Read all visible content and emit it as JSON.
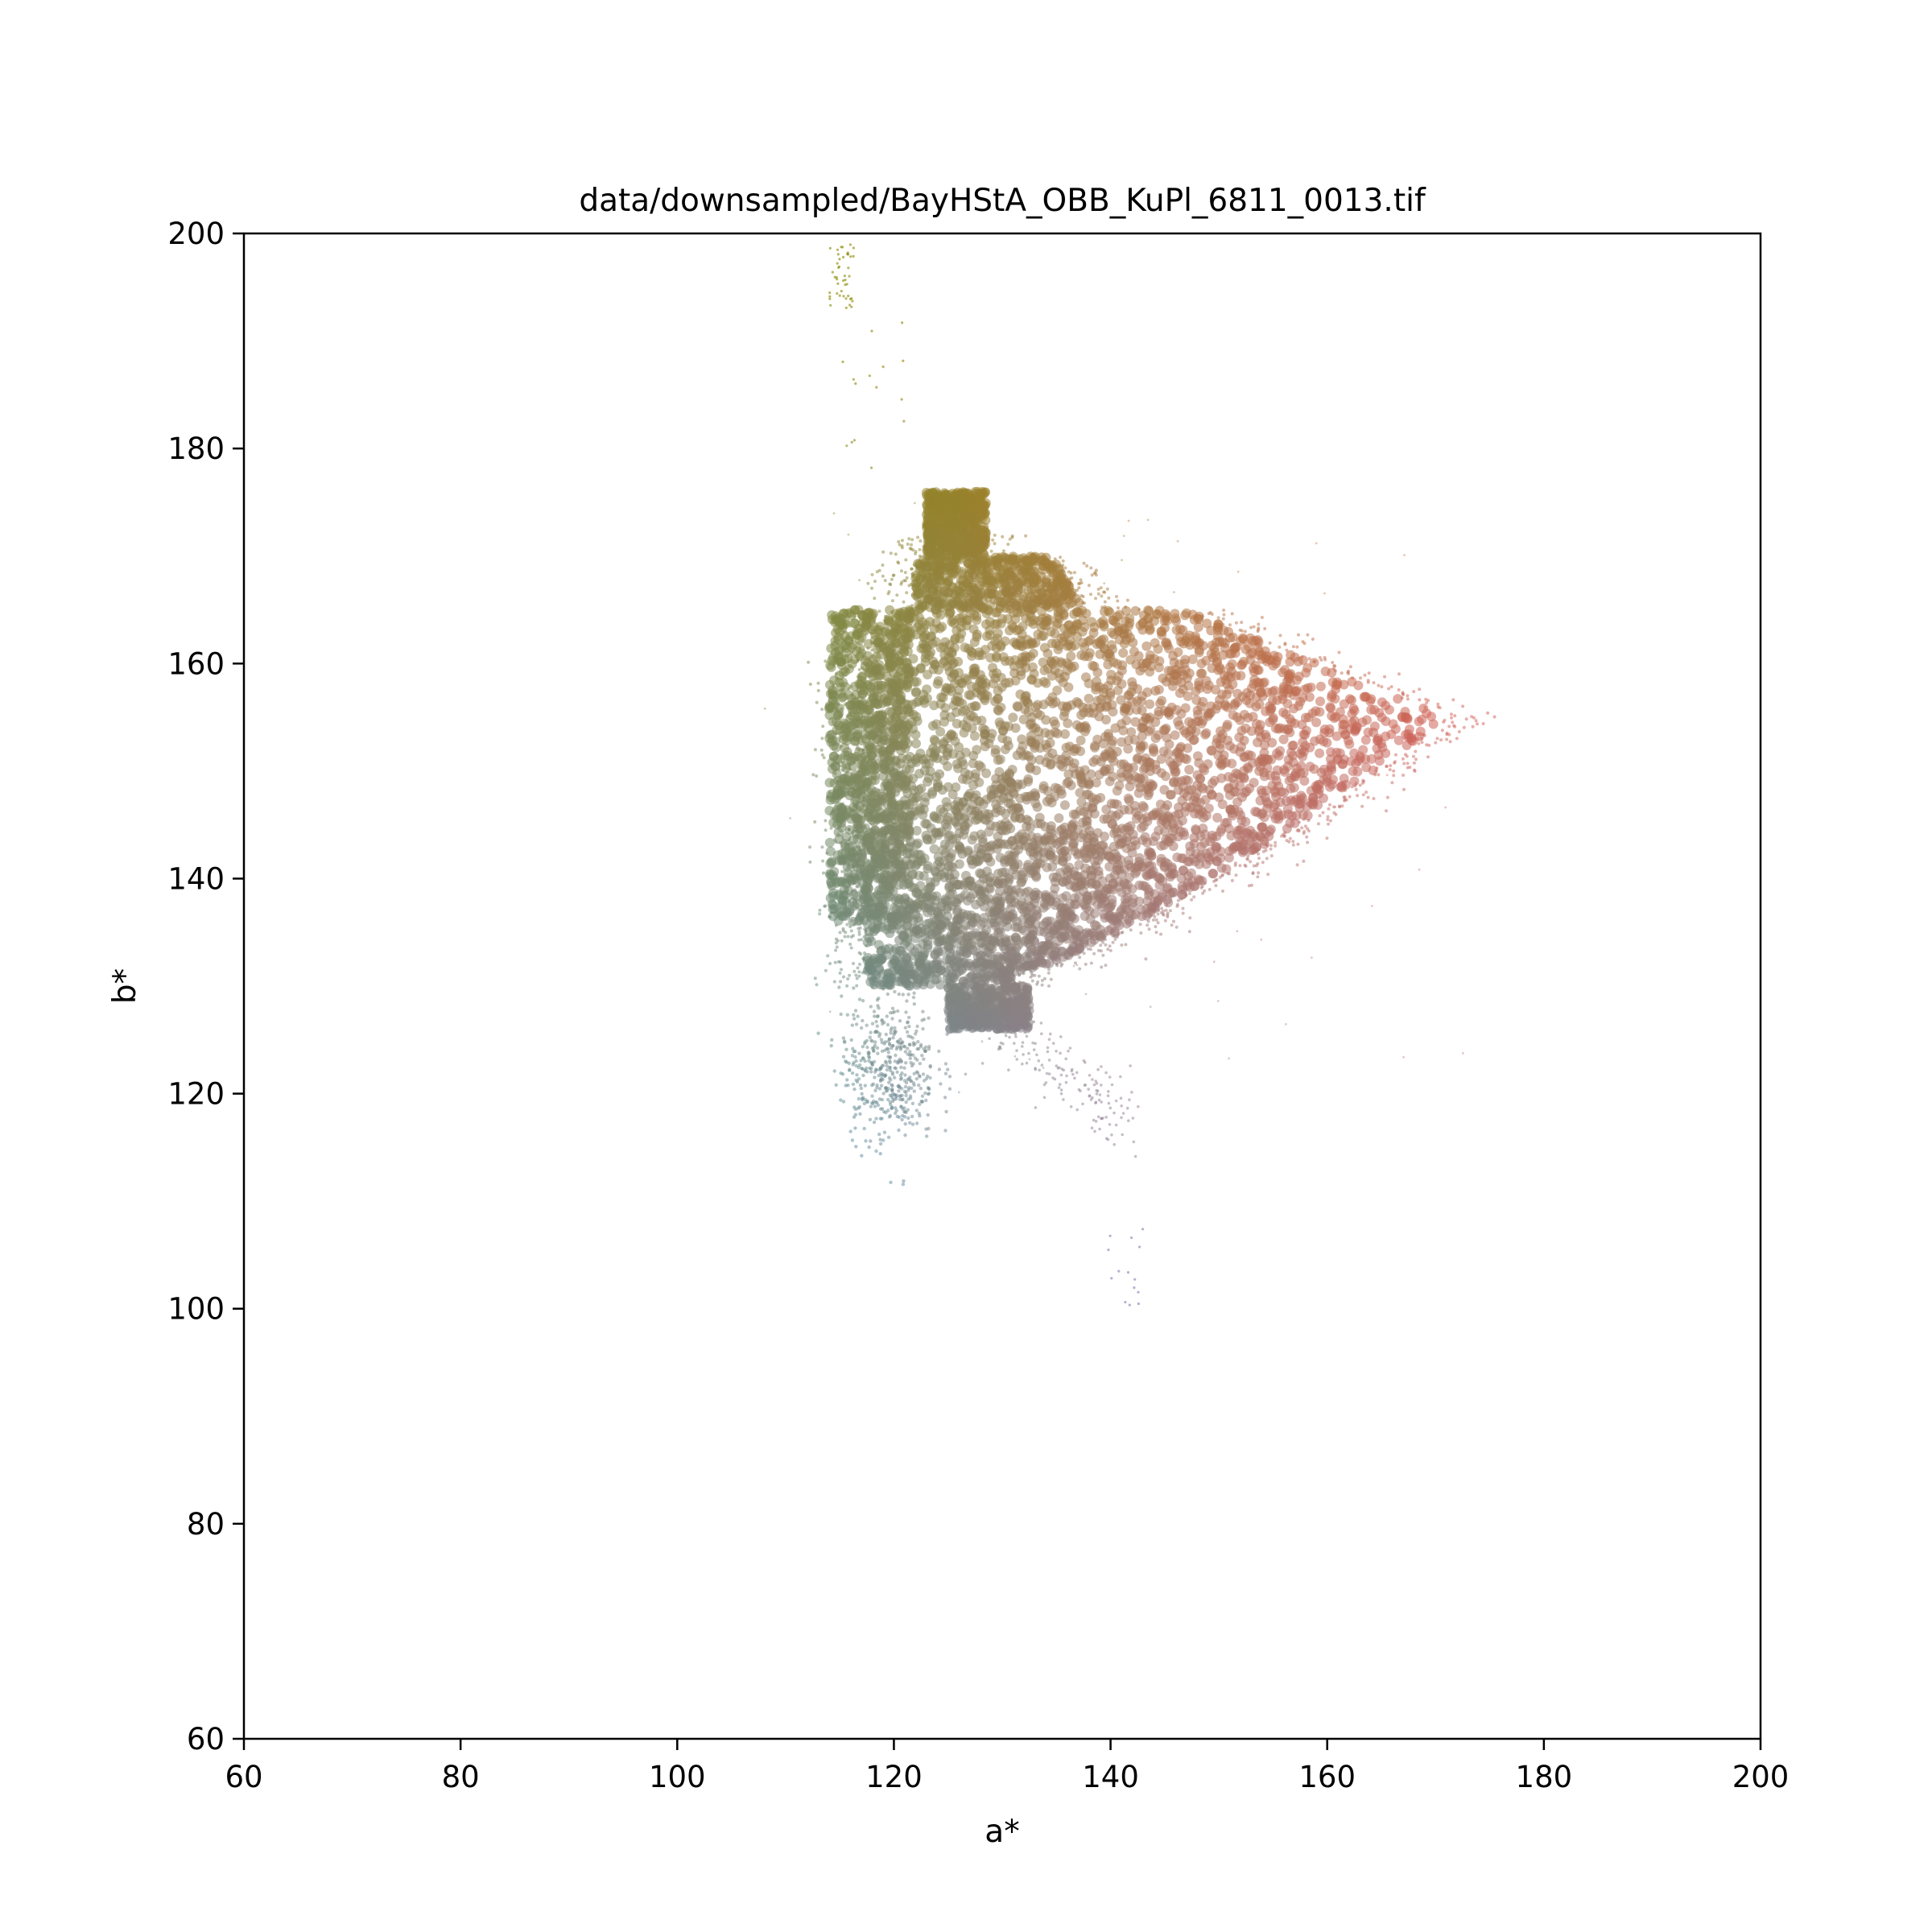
{
  "chart_data": {
    "type": "scatter",
    "title": "data/downsampled/BayHStA_OBB_KuPl_6811_0013.tif",
    "xlabel": "a*",
    "ylabel": "b*",
    "xlim": [
      60,
      200
    ],
    "ylim": [
      60,
      200
    ],
    "xticks": [
      60,
      80,
      100,
      120,
      140,
      160,
      180,
      200
    ],
    "yticks": [
      60,
      80,
      100,
      120,
      140,
      160,
      180,
      200
    ],
    "grid": false,
    "legend": "none",
    "point_color": "CIELAB color of each pixel (a*, b*)",
    "clusters": [
      {
        "name": "main body",
        "a_range": [
          116,
          172
        ],
        "b_range": [
          126,
          176
        ],
        "density": "dense"
      },
      {
        "name": "left green block",
        "a_range": [
          113,
          122
        ],
        "b_range": [
          135,
          165
        ],
        "density": "dense"
      },
      {
        "name": "blue-grey blob",
        "a_range": [
          115,
          124
        ],
        "b_range": [
          115,
          131
        ],
        "density": "medium"
      },
      {
        "name": "lower right tail",
        "a_range": [
          128,
          143
        ],
        "b_range": [
          100,
          127
        ],
        "density": "sparse"
      },
      {
        "name": "upper yellow tail",
        "a_range": [
          113,
          122
        ],
        "b_range": [
          180,
          199
        ],
        "density": "sparse"
      }
    ]
  }
}
